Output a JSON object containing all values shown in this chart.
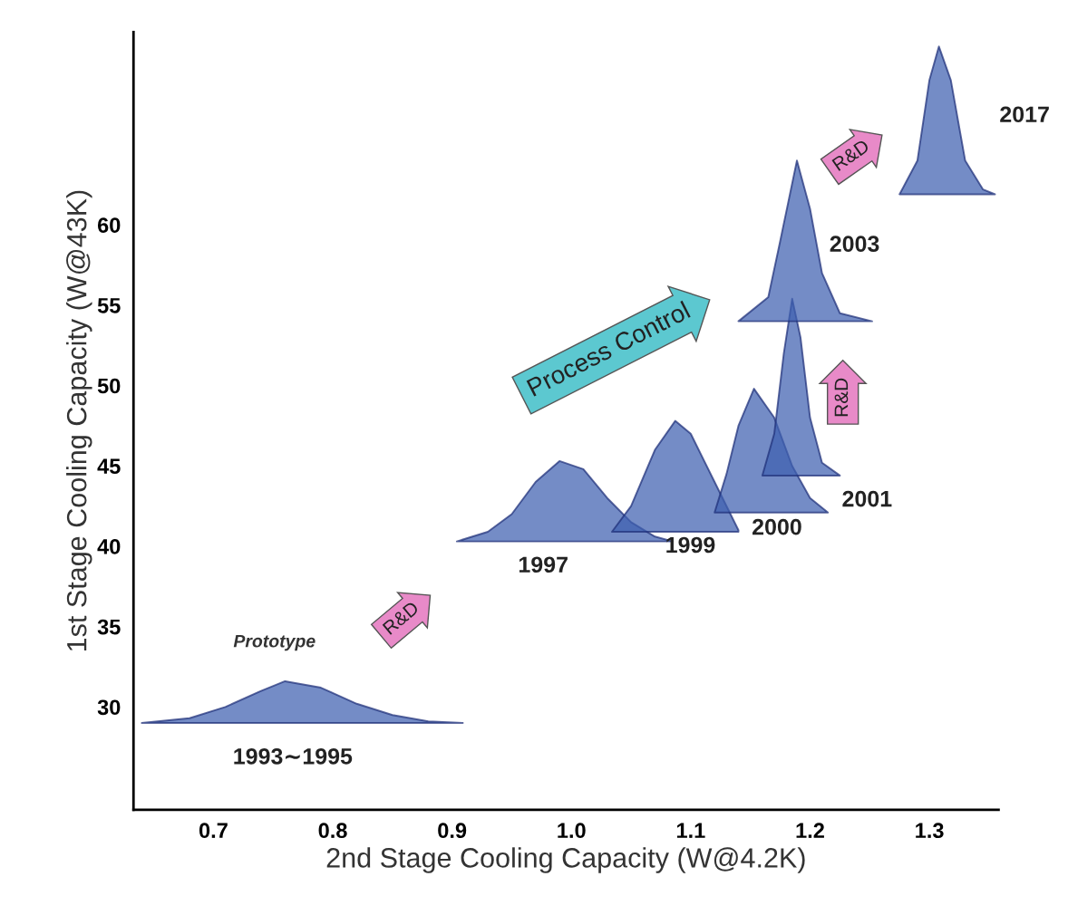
{
  "chart_data": {
    "type": "area",
    "xlabel": "2nd Stage Cooling Capacity (W@4.2K)",
    "ylabel": "1st Stage Cooling Capacity (W@43K)",
    "xlim": [
      0.633,
      1.358
    ],
    "ylim": [
      23.6,
      72
    ],
    "xticks": [
      0.7,
      0.8,
      0.9,
      {
        "value": 1.0,
        "label": "1.0"
      },
      1.1,
      1.2,
      1.3
    ],
    "yticks": [
      30,
      35,
      40,
      45,
      50,
      55,
      60
    ],
    "grid": false,
    "legend": false,
    "series": [
      {
        "name": "1993∼1995",
        "color": "#3f5fb0",
        "x": [
          0.64,
          0.68,
          0.71,
          0.74,
          0.76,
          0.79,
          0.82,
          0.85,
          0.88,
          0.909
        ],
        "values": [
          29.0,
          29.3,
          30.0,
          31.0,
          31.6,
          31.2,
          30.2,
          29.5,
          29.1,
          29.0
        ]
      },
      {
        "name": "1997",
        "color": "#3f5fb0",
        "x": [
          0.904,
          0.93,
          0.95,
          0.97,
          0.99,
          1.01,
          1.03,
          1.05,
          1.07,
          1.085
        ],
        "values": [
          40.3,
          40.9,
          42.0,
          44.0,
          45.3,
          44.8,
          43.0,
          41.5,
          40.6,
          40.3
        ]
      },
      {
        "name": "1999",
        "color": "#3f5fb0",
        "x": [
          1.034,
          1.05,
          1.07,
          1.087,
          1.1,
          1.12,
          1.14
        ],
        "values": [
          40.9,
          42.5,
          46.0,
          47.8,
          47.0,
          44.0,
          41.0
        ]
      },
      {
        "name": "2000",
        "color": "#3f5fb0",
        "x": [
          1.12,
          1.13,
          1.14,
          1.153,
          1.17,
          1.185,
          1.2,
          1.215
        ],
        "values": [
          42.1,
          44.5,
          47.5,
          49.8,
          48.0,
          45.0,
          43.0,
          42.1
        ]
      },
      {
        "name": "2001",
        "color": "#3f5fb0",
        "x": [
          1.16,
          1.17,
          1.178,
          1.185,
          1.192,
          1.2,
          1.21,
          1.225
        ],
        "values": [
          44.4,
          47.0,
          52.0,
          55.4,
          53.0,
          48.0,
          45.2,
          44.4
        ]
      },
      {
        "name": "2003",
        "color": "#3f5fb0",
        "x": [
          1.14,
          1.165,
          1.175,
          1.189,
          1.2,
          1.21,
          1.225,
          1.252
        ],
        "values": [
          54.0,
          55.5,
          59.0,
          64.0,
          61.0,
          57.0,
          54.5,
          54.0
        ]
      },
      {
        "name": "2017",
        "color": "#3f5fb0",
        "x": [
          1.275,
          1.29,
          1.3,
          1.308,
          1.318,
          1.33,
          1.345,
          1.355
        ],
        "values": [
          61.9,
          64.0,
          69.0,
          71.1,
          69.0,
          64.0,
          62.2,
          61.9
        ]
      }
    ],
    "annotations": [
      "Prototype",
      "R&D",
      "Process Control",
      "R&D",
      "R&D"
    ]
  }
}
